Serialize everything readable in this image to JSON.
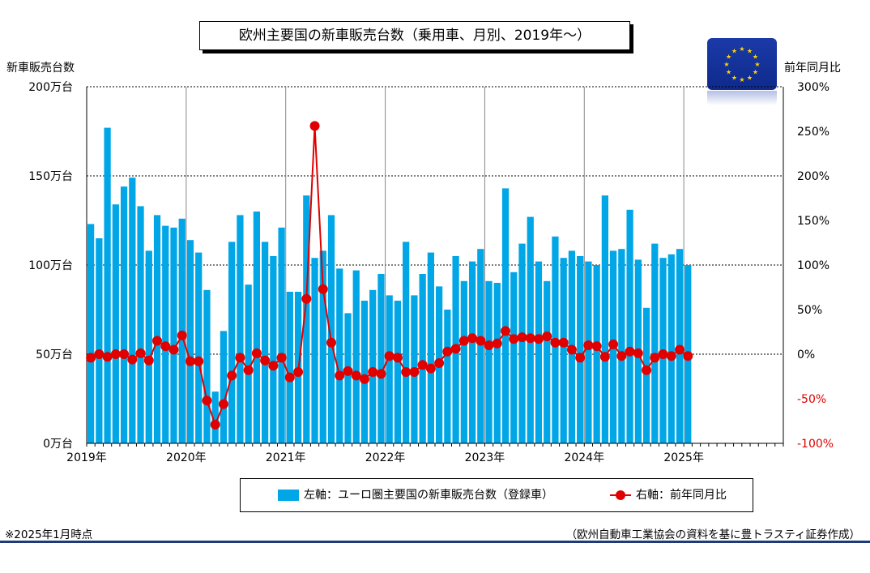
{
  "title": "欧州主要国の新車販売台数（乗用車、月別、2019年〜）",
  "left_axis_title": "新車販売台数",
  "right_axis_title": "前年同月比",
  "note_left": "※2025年1月時点",
  "note_right": "（欧州自動車工業協会の資料を基に豊トラスティ証券作成）",
  "flag_icon": "eu-flag-icon",
  "colors": {
    "bar": "#00a6e6",
    "line": "#e00000",
    "grid": "#000000"
  },
  "chart_data": {
    "type": "bar",
    "x_tick_labels": [
      "2019年",
      "2020年",
      "2021年",
      "2022年",
      "2023年",
      "2024年",
      "2025年"
    ],
    "y_left": {
      "ticks": [
        0,
        50,
        100,
        150,
        200
      ],
      "tick_labels": [
        "0万台",
        "50万台",
        "100万台",
        "150万台",
        "200万台"
      ],
      "range": [
        0,
        200
      ]
    },
    "y_right": {
      "ticks": [
        -100,
        -50,
        0,
        50,
        100,
        150,
        200,
        250,
        300
      ],
      "tick_labels": [
        "-100%",
        "-50%",
        "0%",
        "50%",
        "100%",
        "150%",
        "200%",
        "250%",
        "300%"
      ],
      "range": [
        -100,
        300
      ]
    },
    "legend": [
      "左軸：ユーロ圏主要国の新車販売台数（登録車）",
      "右軸：前年同月比"
    ],
    "series": [
      {
        "name": "左軸：ユーロ圏主要国の新車販売台数（登録車）",
        "type": "bar",
        "axis": "left",
        "values": [
          123,
          115,
          177,
          134,
          144,
          149,
          133,
          108,
          128,
          122,
          121,
          126,
          114,
          107,
          86,
          29,
          63,
          113,
          128,
          89,
          130,
          113,
          105,
          121,
          85,
          85,
          139,
          104,
          108,
          128,
          98,
          73,
          97,
          80,
          86,
          95,
          83,
          80,
          113,
          83,
          95,
          107,
          88,
          75,
          105,
          91,
          102,
          109,
          91,
          90,
          143,
          96,
          112,
          127,
          102,
          91,
          116,
          104,
          108,
          105,
          102,
          100,
          139,
          108,
          109,
          131,
          103,
          76,
          112,
          104,
          106,
          109,
          100
        ]
      },
      {
        "name": "右軸：前年同月比",
        "type": "line",
        "axis": "right",
        "values": [
          -4,
          0,
          -3,
          0,
          0,
          -6,
          1,
          -7,
          15,
          9,
          5,
          21,
          -8,
          -8,
          -52,
          -79,
          -56,
          -24,
          -4,
          -18,
          1,
          -7,
          -13,
          -4,
          -26,
          -20,
          62,
          256,
          73,
          13,
          -24,
          -19,
          -24,
          -28,
          -20,
          -22,
          -2,
          -4,
          -20,
          -20,
          -12,
          -16,
          -10,
          3,
          6,
          15,
          18,
          15,
          10,
          12,
          26,
          17,
          19,
          18,
          17,
          20,
          13,
          13,
          5,
          -4,
          10,
          9,
          -3,
          11,
          -2,
          3,
          1,
          -18,
          -4,
          0,
          -2,
          5,
          -2
        ]
      }
    ]
  }
}
